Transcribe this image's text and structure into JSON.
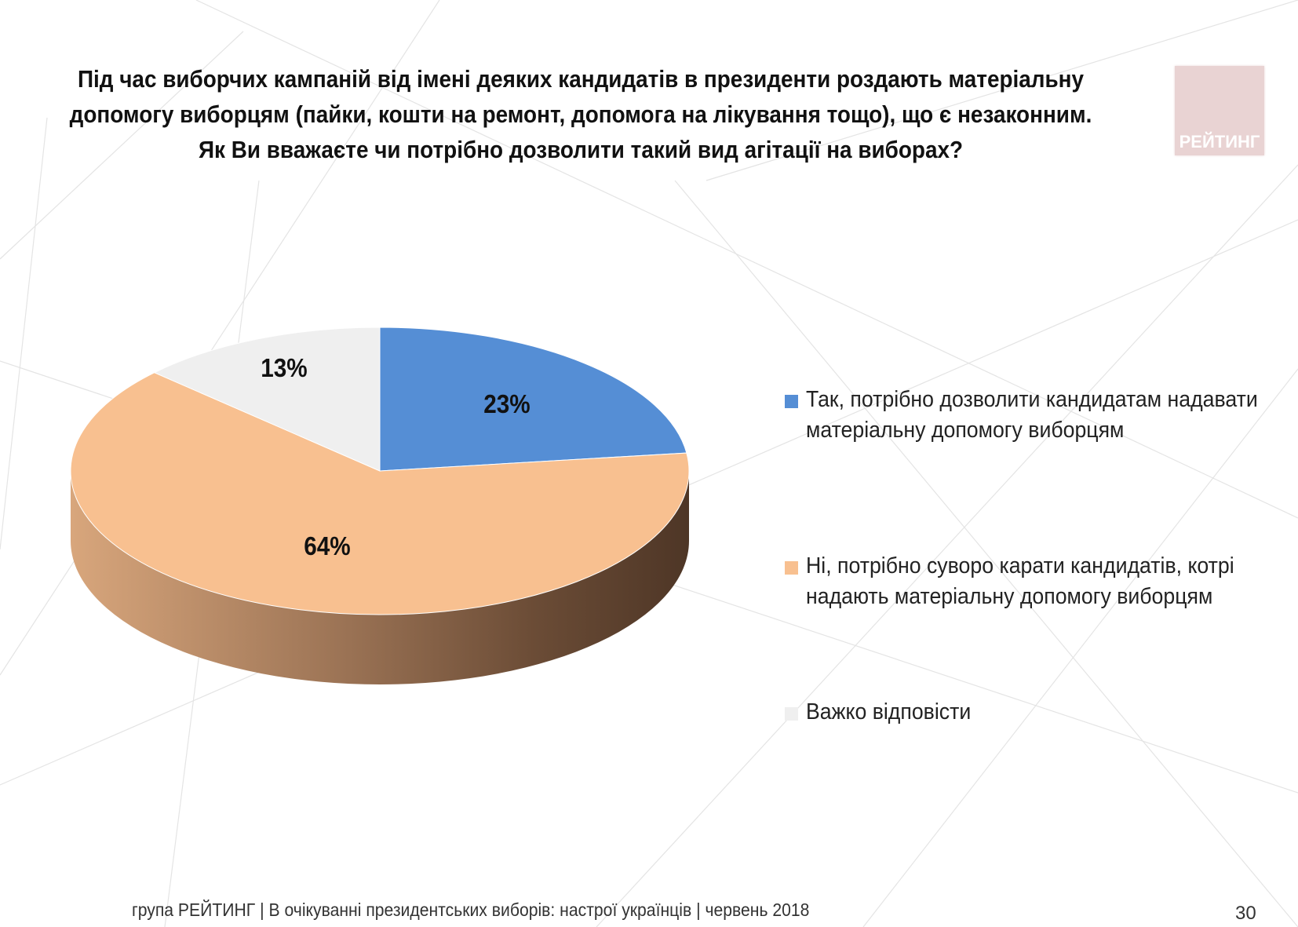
{
  "title_lines": [
    "Під час виборчих кампаній від імені деяких кандидатів в президенти роздають матеріальну",
    "допомогу виборцям (пайки, кошти на ремонт, допомога на лікування тощо), що є незаконним.",
    "Як Ви вважаєте чи потрібно дозволити такий вид агітації на виборах?"
  ],
  "logo": {
    "text": "РЕЙТИНГ",
    "color": "#e9d3d3"
  },
  "chart_data": {
    "type": "pie",
    "title": "",
    "unit": "%",
    "slices": [
      {
        "label_lines": [
          "Так, потрібно дозволити кандидатам надавати",
          "матеріальну допомогу виборцям"
        ],
        "value": 23,
        "display": "23%",
        "color": "#558ed5"
      },
      {
        "label_lines": [
          "Ні, потрібно суворо карати кандидатів, котрі",
          "надають матеріальну допомогу виборцям"
        ],
        "value": 64,
        "display": "64%",
        "color": "#f8c090"
      },
      {
        "label_lines": [
          "Важко відповісти"
        ],
        "value": 13,
        "display": "13%",
        "color": "#efefef"
      }
    ],
    "legend_position": "right"
  },
  "footer": {
    "text": "група РЕЙТИНГ  | В очікуванні президентських виборів: настрої українців |  червень 2018",
    "page_number": "30"
  }
}
